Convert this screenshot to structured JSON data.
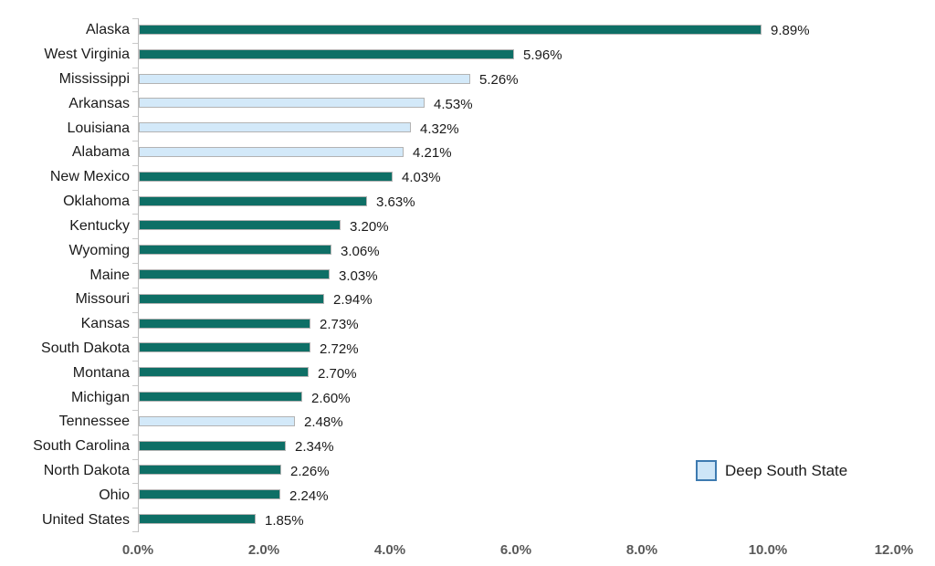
{
  "chart_data": {
    "type": "bar",
    "orientation": "horizontal",
    "title": "",
    "xlabel": "",
    "ylabel": "",
    "xlim": [
      0,
      12
    ],
    "grid": false,
    "categories": [
      "Alaska",
      "West Virginia",
      "Mississippi",
      "Arkansas",
      "Louisiana",
      "Alabama",
      "New Mexico",
      "Oklahoma",
      "Kentucky",
      "Wyoming",
      "Maine",
      "Missouri",
      "Kansas",
      "South Dakota",
      "Montana",
      "Michigan",
      "Tennessee",
      "South Carolina",
      "North Dakota",
      "Ohio",
      "United States"
    ],
    "values": [
      9.89,
      5.96,
      5.26,
      4.53,
      4.32,
      4.21,
      4.03,
      3.63,
      3.2,
      3.06,
      3.03,
      2.94,
      2.73,
      2.72,
      2.7,
      2.6,
      2.48,
      2.34,
      2.26,
      2.24,
      1.85
    ],
    "value_labels": [
      "9.89%",
      "5.96%",
      "5.26%",
      "4.53%",
      "4.32%",
      "4.21%",
      "4.03%",
      "3.63%",
      "3.20%",
      "3.06%",
      "3.03%",
      "2.94%",
      "2.73%",
      "2.72%",
      "2.70%",
      "2.60%",
      "2.48%",
      "2.34%",
      "2.26%",
      "2.24%",
      "1.85%"
    ],
    "deep_south_flags": [
      false,
      false,
      true,
      true,
      true,
      true,
      false,
      false,
      false,
      false,
      false,
      false,
      false,
      false,
      false,
      false,
      true,
      false,
      false,
      false,
      false
    ],
    "x_tick_labels": [
      "0.0%",
      "2.0%",
      "4.0%",
      "6.0%",
      "8.0%",
      "10.0%",
      "12.0%"
    ],
    "x_tick_values": [
      0,
      2,
      4,
      6,
      8,
      10,
      12
    ],
    "legend": {
      "label": "Deep South State",
      "position": "bottom-right"
    },
    "colors": {
      "default_bar": "#0e6f66",
      "deep_south_bar": "#d3e9f9",
      "bar_border": "#b3b3b3",
      "legend_swatch_fill": "#cde5f7",
      "legend_swatch_border": "#3d7ab0",
      "axis_text": "#595959",
      "label_text": "#1a1a1a",
      "axis_line": "#bfbfbf"
    }
  }
}
